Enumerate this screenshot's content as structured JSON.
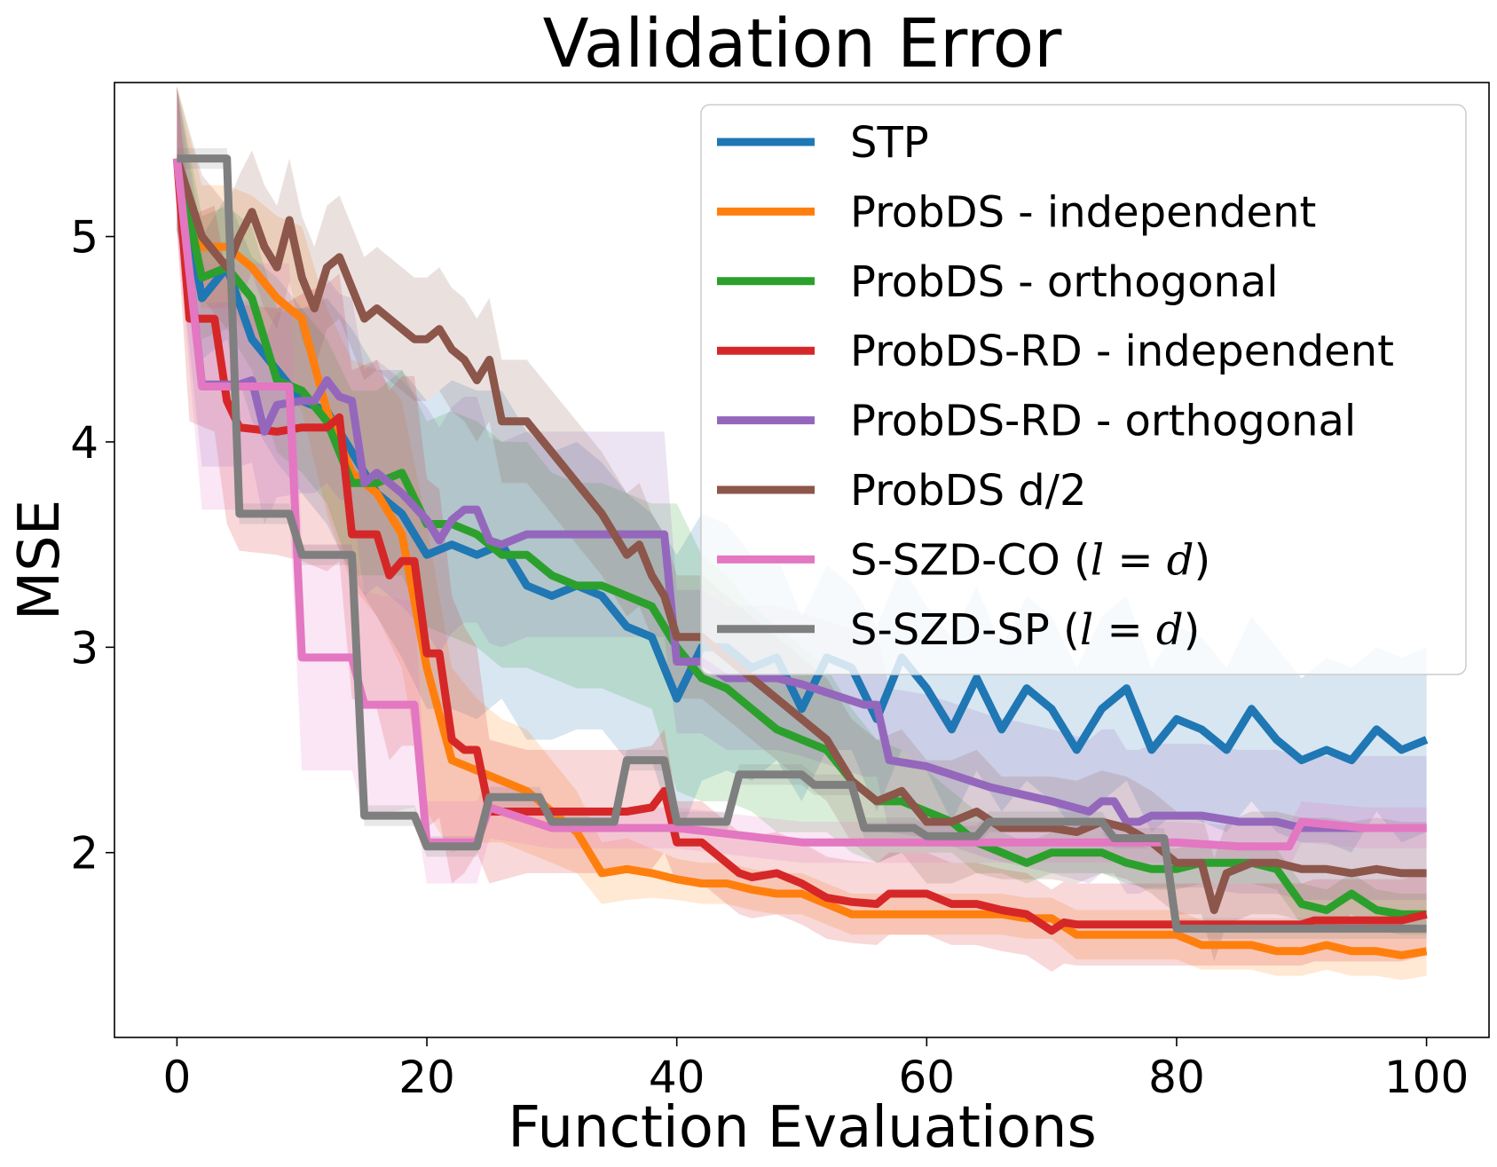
{
  "chart_data": {
    "type": "line",
    "title": "Validation Error",
    "xlabel": "Function Evaluations",
    "ylabel": "MSE",
    "xlim": [
      -5,
      105
    ],
    "ylim": [
      1.1,
      5.75
    ],
    "xticks": [
      0,
      20,
      40,
      60,
      80,
      100
    ],
    "yticks": [
      2,
      3,
      4,
      5
    ],
    "grid": false,
    "legend_position": "top-right",
    "series": [
      {
        "name": "STP",
        "color": "#1f77b4",
        "x": [
          0,
          2,
          4,
          6,
          8,
          10,
          12,
          14,
          16,
          18,
          20,
          22,
          24,
          26,
          28,
          30,
          32,
          34,
          36,
          38,
          40,
          42,
          44,
          46,
          48,
          50,
          52,
          54,
          56,
          58,
          60,
          62,
          64,
          66,
          68,
          70,
          72,
          74,
          76,
          78,
          80,
          82,
          84,
          86,
          88,
          90,
          92,
          94,
          96,
          98,
          100
        ],
        "y": [
          5.38,
          4.7,
          4.85,
          4.5,
          4.35,
          4.2,
          4.15,
          3.95,
          3.75,
          3.65,
          3.45,
          3.5,
          3.45,
          3.5,
          3.3,
          3.25,
          3.3,
          3.25,
          3.1,
          3.05,
          2.75,
          3.0,
          3.0,
          2.9,
          2.95,
          2.7,
          2.95,
          2.9,
          2.65,
          2.95,
          2.8,
          2.6,
          2.85,
          2.6,
          2.8,
          2.7,
          2.5,
          2.7,
          2.8,
          2.5,
          2.65,
          2.6,
          2.5,
          2.7,
          2.55,
          2.45,
          2.5,
          2.45,
          2.6,
          2.5,
          2.55
        ],
        "band": [
          0.35,
          0.3,
          0.35,
          0.4,
          0.45,
          0.45,
          0.55,
          0.6,
          0.6,
          0.7,
          0.75,
          0.8,
          0.8,
          0.75,
          0.75,
          0.7,
          0.7,
          0.65,
          0.65,
          0.6,
          0.7,
          0.65,
          0.6,
          0.55,
          0.5,
          0.45,
          0.45,
          0.4,
          0.45,
          0.45,
          0.4,
          0.45,
          0.45,
          0.4,
          0.45,
          0.45,
          0.4,
          0.45,
          0.45,
          0.4,
          0.45,
          0.45,
          0.4,
          0.45,
          0.45,
          0.4,
          0.45,
          0.45,
          0.4,
          0.45,
          0.45
        ]
      },
      {
        "name": "ProbDS - independent",
        "color": "#ff7f0e",
        "x": [
          0,
          2,
          4,
          6,
          8,
          10,
          12,
          14,
          16,
          18,
          20,
          22,
          24,
          26,
          28,
          30,
          32,
          34,
          36,
          38,
          40,
          42,
          44,
          46,
          48,
          50,
          52,
          54,
          56,
          58,
          60,
          62,
          64,
          66,
          68,
          70,
          72,
          74,
          76,
          78,
          80,
          82,
          84,
          86,
          88,
          90,
          92,
          94,
          96,
          98,
          100
        ],
        "y": [
          5.38,
          4.95,
          4.95,
          4.85,
          4.7,
          4.6,
          4.15,
          3.85,
          3.75,
          3.55,
          2.9,
          2.45,
          2.4,
          2.35,
          2.3,
          2.2,
          2.1,
          1.9,
          1.92,
          1.9,
          1.87,
          1.85,
          1.85,
          1.82,
          1.8,
          1.8,
          1.75,
          1.7,
          1.7,
          1.7,
          1.7,
          1.7,
          1.7,
          1.7,
          1.68,
          1.68,
          1.6,
          1.6,
          1.6,
          1.6,
          1.6,
          1.55,
          1.55,
          1.55,
          1.52,
          1.52,
          1.55,
          1.52,
          1.52,
          1.5,
          1.52
        ],
        "band": [
          0.35,
          0.3,
          0.3,
          0.35,
          0.4,
          0.45,
          0.5,
          0.55,
          0.6,
          0.65,
          0.7,
          0.45,
          0.35,
          0.3,
          0.3,
          0.25,
          0.2,
          0.15,
          0.15,
          0.12,
          0.1,
          0.1,
          0.1,
          0.1,
          0.1,
          0.1,
          0.1,
          0.1,
          0.1,
          0.1,
          0.1,
          0.1,
          0.1,
          0.1,
          0.1,
          0.1,
          0.12,
          0.12,
          0.12,
          0.12,
          0.12,
          0.12,
          0.12,
          0.12,
          0.12,
          0.12,
          0.12,
          0.12,
          0.12,
          0.12,
          0.12
        ]
      },
      {
        "name": "ProbDS - orthogonal",
        "color": "#2ca02c",
        "x": [
          0,
          2,
          4,
          6,
          8,
          10,
          12,
          14,
          16,
          18,
          20,
          22,
          24,
          26,
          28,
          30,
          32,
          34,
          36,
          38,
          40,
          42,
          44,
          46,
          48,
          50,
          52,
          54,
          56,
          58,
          60,
          62,
          64,
          66,
          68,
          70,
          72,
          74,
          76,
          78,
          80,
          82,
          84,
          86,
          88,
          90,
          92,
          94,
          96,
          98,
          100
        ],
        "y": [
          5.38,
          4.8,
          4.85,
          4.7,
          4.3,
          4.25,
          4.1,
          3.8,
          3.8,
          3.85,
          3.6,
          3.6,
          3.55,
          3.45,
          3.45,
          3.35,
          3.3,
          3.3,
          3.25,
          3.2,
          3.0,
          2.85,
          2.8,
          2.7,
          2.6,
          2.55,
          2.5,
          2.35,
          2.25,
          2.25,
          2.2,
          2.15,
          2.05,
          2.0,
          1.95,
          2.0,
          2.0,
          2.0,
          1.95,
          1.92,
          1.92,
          1.95,
          1.95,
          1.95,
          1.92,
          1.75,
          1.72,
          1.8,
          1.72,
          1.7,
          1.7
        ],
        "band": [
          0.35,
          0.3,
          0.3,
          0.35,
          0.35,
          0.4,
          0.4,
          0.45,
          0.45,
          0.5,
          0.5,
          0.55,
          0.55,
          0.55,
          0.55,
          0.5,
          0.5,
          0.5,
          0.5,
          0.5,
          0.7,
          0.6,
          0.55,
          0.5,
          0.5,
          0.45,
          0.4,
          0.35,
          0.3,
          0.25,
          0.2,
          0.15,
          0.15,
          0.1,
          0.1,
          0.1,
          0.1,
          0.1,
          0.1,
          0.1,
          0.1,
          0.1,
          0.1,
          0.1,
          0.1,
          0.1,
          0.1,
          0.1,
          0.1,
          0.1,
          0.1
        ]
      },
      {
        "name": "ProbDS-RD - independent",
        "color": "#d62728",
        "x": [
          0,
          1,
          3,
          4,
          5,
          8,
          10,
          12,
          13,
          14,
          16,
          17,
          18,
          19,
          20,
          21,
          22,
          23,
          24,
          25,
          28,
          30,
          33,
          36,
          38,
          39,
          40,
          42,
          44,
          45,
          46,
          48,
          50,
          52,
          54,
          56,
          57,
          60,
          62,
          64,
          66,
          68,
          70,
          71,
          72,
          75,
          80,
          85,
          90,
          91,
          95,
          98,
          100
        ],
        "y": [
          5.38,
          4.6,
          4.6,
          4.2,
          4.07,
          4.05,
          4.07,
          4.07,
          4.12,
          3.55,
          3.55,
          3.35,
          3.42,
          3.42,
          2.97,
          2.97,
          2.55,
          2.5,
          2.5,
          2.2,
          2.2,
          2.2,
          2.2,
          2.2,
          2.22,
          2.3,
          2.05,
          2.05,
          1.95,
          1.9,
          1.88,
          1.9,
          1.85,
          1.78,
          1.76,
          1.75,
          1.8,
          1.8,
          1.75,
          1.75,
          1.72,
          1.7,
          1.62,
          1.66,
          1.65,
          1.65,
          1.65,
          1.65,
          1.65,
          1.67,
          1.67,
          1.67,
          1.7
        ],
        "band": [
          0.35,
          0.5,
          0.55,
          0.6,
          0.6,
          0.6,
          0.65,
          0.7,
          0.7,
          0.8,
          0.85,
          0.9,
          0.9,
          0.9,
          0.85,
          0.8,
          0.7,
          0.6,
          0.5,
          0.35,
          0.3,
          0.3,
          0.3,
          0.3,
          0.3,
          0.3,
          0.2,
          0.2,
          0.2,
          0.2,
          0.2,
          0.2,
          0.2,
          0.2,
          0.2,
          0.2,
          0.2,
          0.2,
          0.2,
          0.2,
          0.2,
          0.2,
          0.2,
          0.2,
          0.2,
          0.2,
          0.2,
          0.2,
          0.2,
          0.2,
          0.2,
          0.2,
          0.2
        ]
      },
      {
        "name": "ProbDS-RD - orthogonal",
        "color": "#9467bd",
        "x": [
          0,
          2,
          4,
          5,
          6,
          7,
          8,
          10,
          11,
          12,
          13,
          14,
          15,
          16,
          18,
          20,
          21,
          22,
          23,
          24,
          25,
          26,
          28,
          30,
          35,
          39,
          40,
          42,
          44,
          46,
          48,
          50,
          52,
          55,
          56,
          57,
          60,
          62,
          65,
          70,
          73,
          74,
          75,
          76,
          77,
          78,
          80,
          82,
          85,
          88,
          90,
          95,
          100
        ],
        "y": [
          5.38,
          4.28,
          4.28,
          4.28,
          4.3,
          4.05,
          4.18,
          4.2,
          4.2,
          4.3,
          4.22,
          4.2,
          3.8,
          3.85,
          3.75,
          3.62,
          3.52,
          3.62,
          3.67,
          3.67,
          3.52,
          3.5,
          3.55,
          3.55,
          3.55,
          3.55,
          2.93,
          2.93,
          2.85,
          2.85,
          2.85,
          2.82,
          2.78,
          2.72,
          2.72,
          2.45,
          2.42,
          2.38,
          2.32,
          2.25,
          2.2,
          2.25,
          2.25,
          2.15,
          2.15,
          2.18,
          2.18,
          2.18,
          2.15,
          2.15,
          2.12,
          2.12,
          2.12
        ],
        "band": [
          0.35,
          0.4,
          0.4,
          0.4,
          0.4,
          0.45,
          0.45,
          0.45,
          0.45,
          0.5,
          0.5,
          0.5,
          0.55,
          0.55,
          0.55,
          0.55,
          0.55,
          0.55,
          0.55,
          0.55,
          0.5,
          0.5,
          0.5,
          0.5,
          0.5,
          0.5,
          0.35,
          0.35,
          0.35,
          0.35,
          0.35,
          0.35,
          0.35,
          0.35,
          0.35,
          0.35,
          0.35,
          0.35,
          0.35,
          0.35,
          0.35,
          0.35,
          0.35,
          0.35,
          0.35,
          0.35,
          0.35,
          0.35,
          0.35,
          0.35,
          0.35,
          0.35,
          0.35
        ]
      },
      {
        "name": "ProbDS d/2",
        "color": "#8c564b",
        "x": [
          0,
          2,
          4,
          5,
          6,
          7,
          8,
          9,
          10,
          11,
          12,
          13,
          14,
          15,
          16,
          18,
          19,
          20,
          21,
          22,
          23,
          24,
          25,
          26,
          28,
          30,
          32,
          34,
          36,
          37,
          38,
          39,
          40,
          42,
          44,
          46,
          48,
          50,
          52,
          54,
          55,
          56,
          58,
          60,
          62,
          64,
          66,
          68,
          70,
          72,
          74,
          76,
          78,
          80,
          82,
          83,
          84,
          86,
          88,
          90,
          92,
          94,
          96,
          98,
          100
        ],
        "y": [
          5.38,
          5.0,
          4.85,
          5.0,
          5.12,
          4.95,
          4.85,
          5.08,
          4.8,
          4.65,
          4.85,
          4.9,
          4.75,
          4.6,
          4.65,
          4.55,
          4.5,
          4.5,
          4.55,
          4.45,
          4.4,
          4.3,
          4.4,
          4.1,
          4.1,
          3.95,
          3.8,
          3.65,
          3.45,
          3.5,
          3.35,
          3.25,
          3.05,
          3.05,
          2.95,
          2.85,
          2.75,
          2.65,
          2.55,
          2.35,
          2.3,
          2.25,
          2.3,
          2.15,
          2.15,
          2.2,
          2.12,
          2.12,
          2.12,
          2.1,
          2.15,
          2.12,
          2.05,
          1.95,
          1.95,
          1.72,
          1.9,
          1.95,
          1.95,
          1.92,
          1.92,
          1.9,
          1.92,
          1.9,
          1.9
        ],
        "band": [
          0.35,
          0.3,
          0.3,
          0.3,
          0.3,
          0.3,
          0.3,
          0.3,
          0.3,
          0.3,
          0.3,
          0.3,
          0.3,
          0.3,
          0.3,
          0.3,
          0.3,
          0.3,
          0.3,
          0.3,
          0.3,
          0.3,
          0.3,
          0.3,
          0.3,
          0.3,
          0.3,
          0.3,
          0.3,
          0.3,
          0.3,
          0.3,
          0.3,
          0.3,
          0.3,
          0.3,
          0.3,
          0.3,
          0.3,
          0.3,
          0.3,
          0.3,
          0.3,
          0.3,
          0.3,
          0.3,
          0.25,
          0.25,
          0.25,
          0.25,
          0.25,
          0.25,
          0.25,
          0.25,
          0.25,
          0.25,
          0.25,
          0.25,
          0.25,
          0.25,
          0.25,
          0.25,
          0.25,
          0.25,
          0.25
        ]
      },
      {
        "name": "S-SZD-CO (l = d)",
        "color": "#e377c2",
        "x": [
          0,
          2,
          9,
          10,
          14,
          15,
          19,
          20,
          21,
          24,
          25,
          30,
          40,
          50,
          60,
          70,
          80,
          85,
          89,
          90,
          95,
          100
        ],
        "y": [
          5.38,
          4.27,
          4.27,
          2.95,
          2.95,
          2.72,
          2.72,
          2.05,
          2.05,
          2.05,
          2.22,
          2.12,
          2.12,
          2.05,
          2.05,
          2.05,
          2.05,
          2.03,
          2.03,
          2.15,
          2.12,
          2.12
        ],
        "band": [
          0.35,
          0.6,
          0.6,
          0.55,
          0.55,
          0.55,
          0.5,
          0.2,
          0.2,
          0.2,
          0.15,
          0.1,
          0.1,
          0.1,
          0.1,
          0.1,
          0.1,
          0.1,
          0.1,
          0.1,
          0.1,
          0.1
        ]
      },
      {
        "name": "S-SZD-SP (l = d)",
        "color": "#7f7f7f",
        "x": [
          0,
          4,
          5,
          9,
          10,
          14,
          15,
          19,
          20,
          24,
          25,
          29,
          30,
          35,
          36,
          39,
          40,
          44,
          45,
          50,
          51,
          54,
          55,
          59,
          60,
          64,
          65,
          74,
          75,
          79,
          80,
          100
        ],
        "y": [
          5.38,
          5.38,
          3.65,
          3.65,
          3.45,
          3.45,
          2.18,
          2.18,
          2.03,
          2.03,
          2.27,
          2.27,
          2.15,
          2.15,
          2.45,
          2.45,
          2.15,
          2.15,
          2.38,
          2.38,
          2.33,
          2.33,
          2.12,
          2.12,
          2.08,
          2.08,
          2.15,
          2.15,
          2.07,
          2.07,
          1.63,
          1.63
        ],
        "band": [
          0.05,
          0.05,
          0.05,
          0.05,
          0.05,
          0.05,
          0.05,
          0.05,
          0.05,
          0.05,
          0.05,
          0.05,
          0.05,
          0.05,
          0.05,
          0.05,
          0.05,
          0.05,
          0.05,
          0.05,
          0.05,
          0.05,
          0.05,
          0.05,
          0.05,
          0.05,
          0.05,
          0.05,
          0.05,
          0.05,
          0.05,
          0.05
        ]
      }
    ]
  }
}
